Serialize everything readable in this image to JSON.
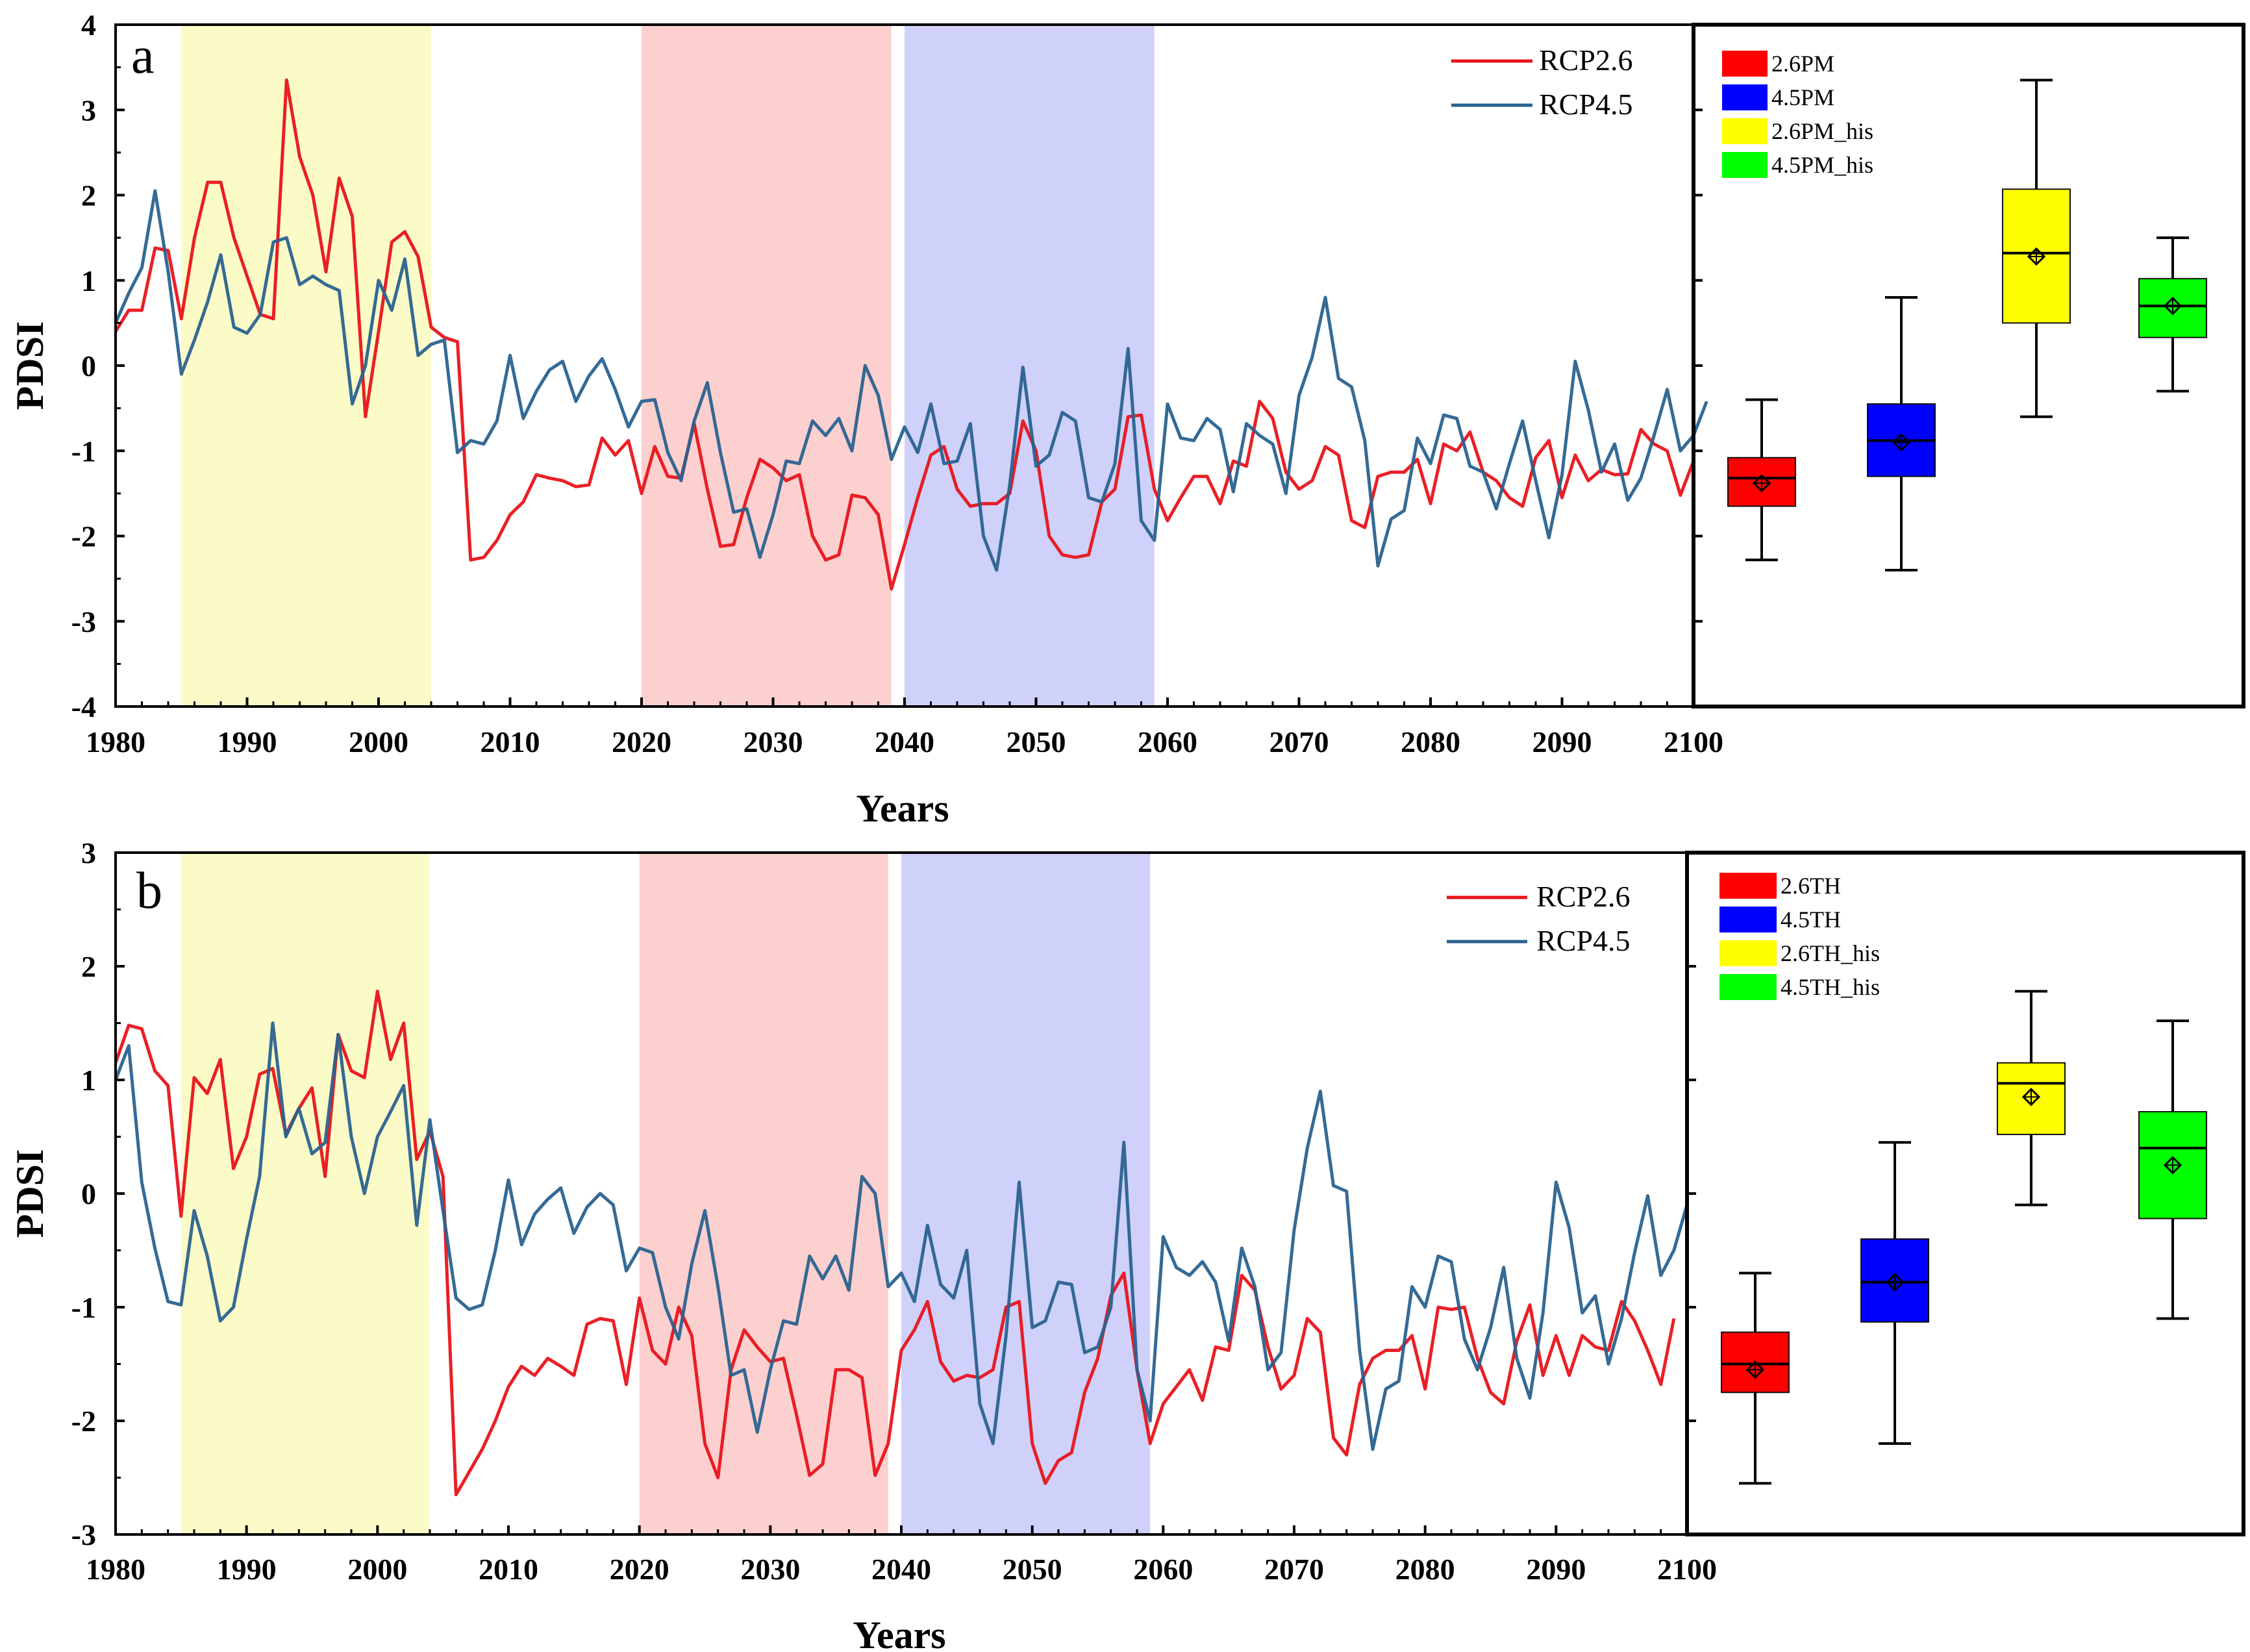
{
  "colors": {
    "rcp26": "#e8141a",
    "rcp45": "#2a628f",
    "shade_hist": "#fbfbc8",
    "shade_near": "#fdd0d0",
    "shade_far": "#cfd1fb",
    "box_red": "#ff0000",
    "box_blue": "#0000ff",
    "box_yellow": "#ffff00",
    "box_green": "#00ff00"
  },
  "chart_data": [
    {
      "panel": "a",
      "type": "line",
      "xlabel": "Years",
      "ylabel": "PDSI",
      "xlim": [
        1980,
        2100
      ],
      "ylim": [
        -4,
        4
      ],
      "xticks": [
        "1980",
        "1990",
        "2000",
        "2010",
        "2020",
        "2030",
        "2040",
        "2050",
        "2060",
        "2070",
        "2080",
        "2090",
        "2100"
      ],
      "yticks": [
        "4",
        "3",
        "2",
        "1",
        "0",
        "-1",
        "-2",
        "-3",
        "-4"
      ],
      "shaded_periods": [
        {
          "from": 1985,
          "to": 2004,
          "color": "shade_hist"
        },
        {
          "from": 2020,
          "to": 2039,
          "color": "shade_near"
        },
        {
          "from": 2040,
          "to": 2059,
          "color": "shade_far"
        }
      ],
      "x_start": 1980,
      "series": [
        {
          "name": "RCP2.6",
          "color": "rcp26",
          "values": [
            0.4,
            0.65,
            0.65,
            1.38,
            1.35,
            0.55,
            1.5,
            2.15,
            2.15,
            1.5,
            1.05,
            0.6,
            0.55,
            3.35,
            2.45,
            2.0,
            1.1,
            2.2,
            1.75,
            -0.6,
            0.4,
            1.45,
            1.57,
            1.28,
            0.45,
            0.33,
            0.28,
            -2.28,
            -2.25,
            -2.05,
            -1.75,
            -1.6,
            -1.28,
            -1.32,
            -1.35,
            -1.42,
            -1.4,
            -0.85,
            -1.05,
            -0.88,
            -1.5,
            -0.95,
            -1.3,
            -1.32,
            -0.68,
            -1.45,
            -2.12,
            -2.1,
            -1.55,
            -1.1,
            -1.2,
            -1.35,
            -1.28,
            -2.0,
            -2.28,
            -2.22,
            -1.52,
            -1.55,
            -1.75,
            -2.62,
            -2.1,
            -1.55,
            -1.05,
            -0.95,
            -1.45,
            -1.65,
            -1.62,
            -1.62,
            -1.5,
            -0.65,
            -1.0,
            -2.0,
            -2.22,
            -2.25,
            -2.22,
            -1.6,
            -1.45,
            -0.6,
            -0.58,
            -1.45,
            -1.82,
            -1.55,
            -1.3,
            -1.3,
            -1.62,
            -1.12,
            -1.18,
            -0.42,
            -0.62,
            -1.25,
            -1.45,
            -1.35,
            -0.95,
            -1.05,
            -1.82,
            -1.9,
            -1.3,
            -1.25,
            -1.25,
            -1.1,
            -1.62,
            -0.92,
            -1.0,
            -0.78,
            -1.25,
            -1.35,
            -1.55,
            -1.65,
            -1.08,
            -0.88,
            -1.55,
            -1.05,
            -1.35,
            -1.22,
            -1.28,
            -1.27,
            -0.75,
            -0.92,
            -1.0,
            -1.52,
            -1.12
          ]
        },
        {
          "name": "RCP4.5",
          "color": "rcp45",
          "values": [
            0.5,
            0.85,
            1.15,
            2.05,
            1.1,
            -0.1,
            0.3,
            0.75,
            1.3,
            0.45,
            0.38,
            0.6,
            1.45,
            1.5,
            0.95,
            1.05,
            0.95,
            0.88,
            -0.45,
            0.0,
            1.0,
            0.65,
            1.25,
            0.12,
            0.25,
            0.3,
            -1.02,
            -0.88,
            -0.92,
            -0.65,
            0.12,
            -0.62,
            -0.3,
            -0.05,
            0.05,
            -0.42,
            -0.12,
            0.08,
            -0.28,
            -0.72,
            -0.42,
            -0.4,
            -1.02,
            -1.35,
            -0.65,
            -0.2,
            -1.02,
            -1.72,
            -1.68,
            -2.25,
            -1.75,
            -1.12,
            -1.15,
            -0.65,
            -0.82,
            -0.62,
            -1.0,
            0.0,
            -0.35,
            -1.1,
            -0.72,
            -1.02,
            -0.45,
            -1.15,
            -1.12,
            -0.68,
            -2.0,
            -2.4,
            -1.4,
            -0.02,
            -1.18,
            -1.05,
            -0.55,
            -0.65,
            -1.55,
            -1.6,
            -1.15,
            0.2,
            -1.82,
            -2.05,
            -0.45,
            -0.85,
            -0.88,
            -0.62,
            -0.75,
            -1.48,
            -0.68,
            -0.82,
            -0.92,
            -1.5,
            -0.35,
            0.1,
            0.8,
            -0.15,
            -0.25,
            -0.88,
            -2.35,
            -1.8,
            -1.7,
            -0.85,
            -1.15,
            -0.58,
            -0.62,
            -1.18,
            -1.25,
            -1.68,
            -1.15,
            -0.65,
            -1.35,
            -2.02,
            -1.28,
            0.05,
            -0.52,
            -1.25,
            -0.92,
            -1.58,
            -1.32,
            -0.82,
            -0.28,
            -1.0,
            -0.82,
            -0.42
          ]
        }
      ],
      "legend": [
        "RCP2.6",
        "RCP4.5"
      ],
      "boxplot": {
        "ylim": [
          -4,
          4
        ],
        "boxes": [
          {
            "label": "2.6PM",
            "color": "box_red",
            "min": -2.28,
            "q1": -1.65,
            "median": -1.32,
            "q3": -1.08,
            "max": -0.4,
            "mean": -1.38
          },
          {
            "label": "4.5PM",
            "color": "box_blue",
            "min": -2.4,
            "q1": -1.3,
            "median": -0.88,
            "q3": -0.45,
            "max": 0.8,
            "mean": -0.9
          },
          {
            "label": "2.6PM_his",
            "color": "box_yellow",
            "min": -0.6,
            "q1": 0.5,
            "median": 1.32,
            "q3": 2.07,
            "max": 3.35,
            "mean": 1.28
          },
          {
            "label": "4.5PM_his",
            "color": "box_green",
            "min": -0.3,
            "q1": 0.33,
            "median": 0.7,
            "q3": 1.02,
            "max": 1.5,
            "mean": 0.7
          }
        ]
      }
    },
    {
      "panel": "b",
      "type": "line",
      "xlabel": "Years",
      "ylabel": "PDSI",
      "xlim": [
        1980,
        2100
      ],
      "ylim": [
        -3,
        3
      ],
      "xticks": [
        "1980",
        "1990",
        "2000",
        "2010",
        "2020",
        "2030",
        "2040",
        "2050",
        "2060",
        "2070",
        "2080",
        "2090",
        "2100"
      ],
      "yticks": [
        "3",
        "2",
        "1",
        "0",
        "-1",
        "-2",
        "-3"
      ],
      "shaded_periods": [
        {
          "from": 1985,
          "to": 2004,
          "color": "shade_hist"
        },
        {
          "from": 2020,
          "to": 2039,
          "color": "shade_near"
        },
        {
          "from": 2040,
          "to": 2059,
          "color": "shade_far"
        }
      ],
      "x_start": 1980,
      "series": [
        {
          "name": "RCP2.6",
          "color": "rcp26",
          "values": [
            1.15,
            1.48,
            1.45,
            1.08,
            0.95,
            -0.2,
            1.02,
            0.88,
            1.18,
            0.22,
            0.5,
            1.05,
            1.1,
            0.52,
            0.75,
            0.93,
            0.15,
            1.4,
            1.08,
            1.02,
            1.78,
            1.18,
            1.5,
            0.3,
            0.55,
            0.15,
            -2.65,
            -2.45,
            -2.25,
            -2.0,
            -1.7,
            -1.52,
            -1.6,
            -1.45,
            -1.52,
            -1.6,
            -1.15,
            -1.1,
            -1.12,
            -1.68,
            -0.92,
            -1.38,
            -1.5,
            -1.0,
            -1.25,
            -2.2,
            -2.5,
            -1.55,
            -1.2,
            -1.35,
            -1.48,
            -1.45,
            -1.95,
            -2.48,
            -2.38,
            -1.55,
            -1.55,
            -1.62,
            -2.48,
            -2.2,
            -1.38,
            -1.2,
            -0.95,
            -1.48,
            -1.65,
            -1.6,
            -1.62,
            -1.55,
            -1.0,
            -0.95,
            -2.2,
            -2.55,
            -2.35,
            -2.28,
            -1.75,
            -1.45,
            -0.9,
            -0.7,
            -1.55,
            -2.2,
            -1.85,
            -1.7,
            -1.55,
            -1.82,
            -1.35,
            -1.38,
            -0.72,
            -0.85,
            -1.35,
            -1.72,
            -1.6,
            -1.1,
            -1.22,
            -2.15,
            -2.3,
            -1.68,
            -1.45,
            -1.38,
            -1.38,
            -1.25,
            -1.72,
            -1.0,
            -1.02,
            -1.0,
            -1.45,
            -1.75,
            -1.85,
            -1.3,
            -0.98,
            -1.6,
            -1.25,
            -1.6,
            -1.25,
            -1.35,
            -1.38,
            -0.95,
            -1.12,
            -1.38,
            -1.68,
            -1.1
          ]
        },
        {
          "name": "RCP4.5",
          "color": "rcp45",
          "values": [
            1.0,
            1.3,
            0.1,
            -0.48,
            -0.95,
            -0.98,
            -0.15,
            -0.55,
            -1.12,
            -1.0,
            -0.4,
            0.15,
            1.5,
            0.5,
            0.75,
            0.35,
            0.45,
            1.4,
            0.5,
            0.0,
            0.5,
            0.72,
            0.95,
            -0.28,
            0.65,
            -0.15,
            -0.92,
            -1.02,
            -0.98,
            -0.5,
            0.12,
            -0.45,
            -0.18,
            -0.05,
            0.05,
            -0.35,
            -0.12,
            0.0,
            -0.1,
            -0.68,
            -0.48,
            -0.52,
            -1.0,
            -1.28,
            -0.62,
            -0.15,
            -0.82,
            -1.6,
            -1.55,
            -2.1,
            -1.55,
            -1.12,
            -1.15,
            -0.55,
            -0.75,
            -0.55,
            -0.85,
            0.15,
            0.0,
            -0.82,
            -0.7,
            -0.95,
            -0.28,
            -0.8,
            -0.92,
            -0.5,
            -1.85,
            -2.2,
            -1.25,
            0.1,
            -1.18,
            -1.12,
            -0.78,
            -0.8,
            -1.4,
            -1.35,
            -1.0,
            0.45,
            -1.55,
            -2.0,
            -0.38,
            -0.65,
            -0.72,
            -0.6,
            -0.78,
            -1.3,
            -0.48,
            -0.82,
            -1.55,
            -1.4,
            -0.32,
            0.4,
            0.9,
            0.07,
            0.02,
            -1.38,
            -2.25,
            -1.72,
            -1.65,
            -0.82,
            -1.0,
            -0.55,
            -0.6,
            -1.28,
            -1.55,
            -1.18,
            -0.65,
            -1.45,
            -1.8,
            -1.05,
            0.1,
            -0.3,
            -1.05,
            -0.9,
            -1.5,
            -1.1,
            -0.52,
            -0.02,
            -0.72,
            -0.5,
            -0.1
          ]
        }
      ],
      "legend": [
        "RCP2.6",
        "RCP4.5"
      ],
      "boxplot": {
        "ylim": [
          -3,
          3
        ],
        "boxes": [
          {
            "label": "2.6TH",
            "color": "box_red",
            "min": -2.55,
            "q1": -1.75,
            "median": -1.5,
            "q3": -1.22,
            "max": -0.7,
            "mean": -1.55
          },
          {
            "label": "4.5TH",
            "color": "box_blue",
            "min": -2.2,
            "q1": -1.13,
            "median": -0.78,
            "q3": -0.4,
            "max": 0.45,
            "mean": -0.78
          },
          {
            "label": "2.6TH_his",
            "color": "box_yellow",
            "min": -0.1,
            "q1": 0.52,
            "median": 0.97,
            "q3": 1.15,
            "max": 1.78,
            "mean": 0.85
          },
          {
            "label": "4.5TH_his",
            "color": "box_green",
            "min": -1.1,
            "q1": -0.22,
            "median": 0.4,
            "q3": 0.72,
            "max": 1.52,
            "mean": 0.25
          }
        ]
      }
    }
  ]
}
